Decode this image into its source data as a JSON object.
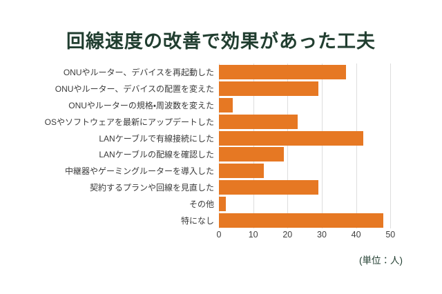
{
  "title": "回線速度の改善で効果があった工夫",
  "unit_label": "(単位：人)",
  "colors": {
    "bar": "#E67823",
    "title_text": "#213E30",
    "gridline": "#DDDDDD",
    "category_text": "#3A3A3A",
    "tick_text": "#404040",
    "background": "#FFFFFF"
  },
  "chart_data": {
    "type": "bar",
    "orientation": "horizontal",
    "title": "回線速度の改善で効果があった工夫",
    "categories": [
      "ONUやルーター、デバイスを再起動した",
      "ONUやルーター、デバイスの配置を変えた",
      "ONUやルーターの規格・周波数を変えた",
      "OSやソフトウェアを最新にアップデートした",
      "LANケーブルで有線接続にした",
      "LANケーブルの配線を確認した",
      "中継器やゲーミングルーターを導入した",
      "契約するプランや回線を見直した",
      "その他",
      "特になし"
    ],
    "values": [
      37,
      29,
      4,
      23,
      42,
      19,
      13,
      29,
      2,
      48
    ],
    "xlabel": "(単位：人)",
    "ylabel": "",
    "xlim": [
      0,
      55
    ],
    "xticks": [
      0,
      10,
      20,
      30,
      40,
      50
    ],
    "grid": true,
    "legend": false
  }
}
